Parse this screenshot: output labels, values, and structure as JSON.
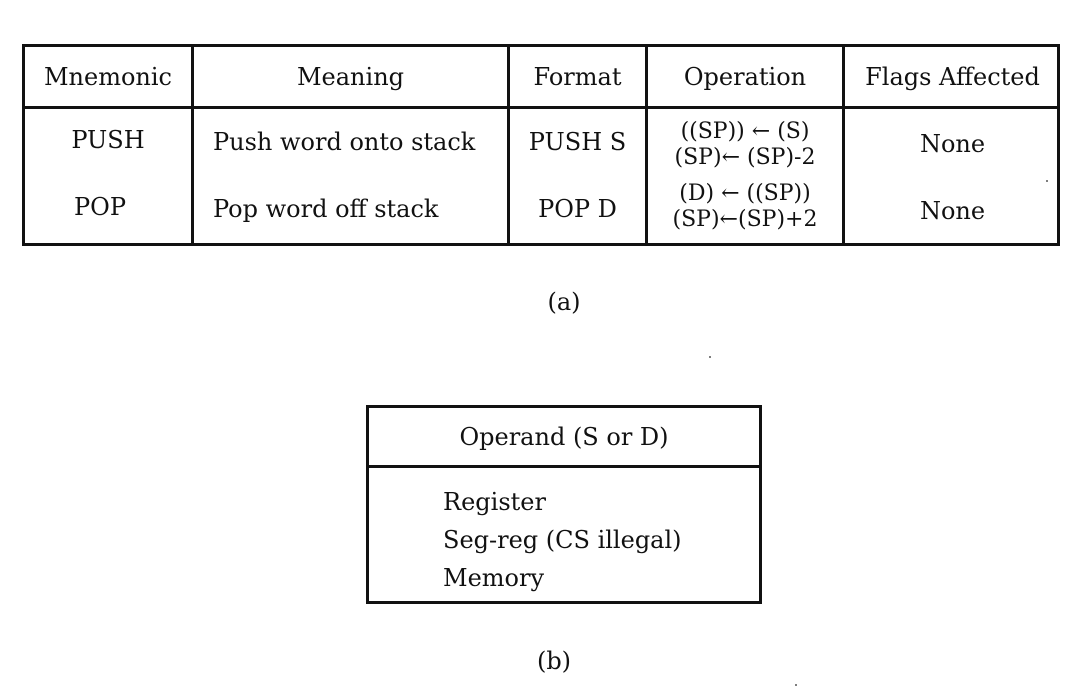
{
  "table_a": {
    "headers": {
      "mnemonic": "Mnemonic",
      "meaning": "Meaning",
      "format": "Format",
      "operation": "Operation",
      "flags": "Flags Affected"
    },
    "rows": [
      {
        "mnemonic": "PUSH",
        "meaning": "Push word onto stack",
        "format": "PUSH S",
        "operation_line1": "((SP)) ← (S)",
        "operation_line2": "(SP)← (SP)-2",
        "flags": "None"
      },
      {
        "mnemonic": "POP",
        "meaning": "Pop word off stack",
        "format": "POP D",
        "operation_line1": "(D) ← ((SP))",
        "operation_line2": "(SP)←(SP)+2",
        "flags": "None"
      }
    ],
    "caption": "(a)"
  },
  "table_b": {
    "header": "Operand (S or D)",
    "items": [
      "Register",
      "Seg-reg (CS illegal)",
      "Memory"
    ],
    "caption": "(b)"
  }
}
